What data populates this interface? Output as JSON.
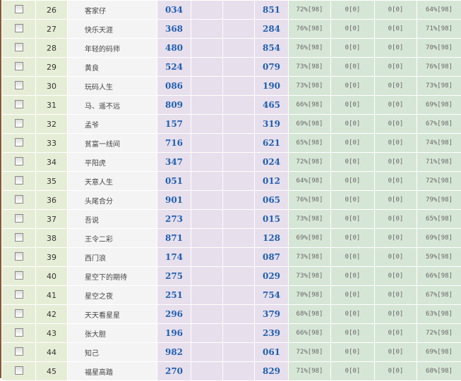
{
  "rows": [
    {
      "no": "26",
      "name": "客家仔",
      "a": "034",
      "b": "851",
      "p1": "72%[98]",
      "z1": "0[0]",
      "z2": "0[0]",
      "p2": "64%[98]"
    },
    {
      "no": "27",
      "name": "快乐天涯",
      "a": "368",
      "b": "284",
      "p1": "76%[98]",
      "z1": "0[0]",
      "z2": "0[0]",
      "p2": "71%[98]"
    },
    {
      "no": "28",
      "name": "年轻的码师",
      "a": "480",
      "b": "854",
      "p1": "76%[98]",
      "z1": "0[0]",
      "z2": "0[0]",
      "p2": "70%[98]"
    },
    {
      "no": "29",
      "name": "黄良",
      "a": "524",
      "b": "079",
      "p1": "73%[98]",
      "z1": "0[0]",
      "z2": "0[0]",
      "p2": "76%[98]"
    },
    {
      "no": "30",
      "name": "玩码人生",
      "a": "086",
      "b": "190",
      "p1": "73%[98]",
      "z1": "0[0]",
      "z2": "0[0]",
      "p2": "73%[98]"
    },
    {
      "no": "31",
      "name": "马、遥不远",
      "a": "809",
      "b": "465",
      "p1": "66%[98]",
      "z1": "0[0]",
      "z2": "0[0]",
      "p2": "69%[98]"
    },
    {
      "no": "32",
      "name": "孟爷",
      "a": "157",
      "b": "319",
      "p1": "69%[98]",
      "z1": "0[0]",
      "z2": "0[0]",
      "p2": "67%[98]"
    },
    {
      "no": "33",
      "name": "贫富一线间",
      "a": "716",
      "b": "621",
      "p1": "65%[98]",
      "z1": "0[0]",
      "z2": "0[0]",
      "p2": "74%[98]"
    },
    {
      "no": "34",
      "name": "平阳虎",
      "a": "347",
      "b": "024",
      "p1": "72%[98]",
      "z1": "0[0]",
      "z2": "0[0]",
      "p2": "71%[98]"
    },
    {
      "no": "35",
      "name": "天意人生",
      "a": "051",
      "b": "012",
      "p1": "64%[98]",
      "z1": "0[0]",
      "z2": "0[0]",
      "p2": "72%[98]"
    },
    {
      "no": "36",
      "name": "头尾合分",
      "a": "901",
      "b": "065",
      "p1": "76%[98]",
      "z1": "0[0]",
      "z2": "0[0]",
      "p2": "79%[98]"
    },
    {
      "no": "37",
      "name": "吾说",
      "a": "273",
      "b": "015",
      "p1": "73%[98]",
      "z1": "0[0]",
      "z2": "0[0]",
      "p2": "65%[98]"
    },
    {
      "no": "38",
      "name": "王令二彩",
      "a": "871",
      "b": "128",
      "p1": "69%[98]",
      "z1": "0[0]",
      "z2": "0[0]",
      "p2": "69%[98]"
    },
    {
      "no": "39",
      "name": "西门浪",
      "a": "174",
      "b": "087",
      "p1": "73%[98]",
      "z1": "0[0]",
      "z2": "0[0]",
      "p2": "59%[98]"
    },
    {
      "no": "40",
      "name": "星空下的期待",
      "a": "275",
      "b": "029",
      "p1": "73%[98]",
      "z1": "0[0]",
      "z2": "0[0]",
      "p2": "66%[98]"
    },
    {
      "no": "41",
      "name": "星空之夜",
      "a": "251",
      "b": "754",
      "p1": "70%[98]",
      "z1": "0[0]",
      "z2": "0[0]",
      "p2": "67%[98]"
    },
    {
      "no": "42",
      "name": "天天看星星",
      "a": "296",
      "b": "379",
      "p1": "68%[98]",
      "z1": "0[0]",
      "z2": "0[0]",
      "p2": "63%[98]"
    },
    {
      "no": "43",
      "name": "张大胆",
      "a": "196",
      "b": "239",
      "p1": "66%[98]",
      "z1": "0[0]",
      "z2": "0[0]",
      "p2": "72%[98]"
    },
    {
      "no": "44",
      "name": "知己",
      "a": "982",
      "b": "061",
      "p1": "72%[98]",
      "z1": "0[0]",
      "z2": "0[0]",
      "p2": "69%[98]"
    },
    {
      "no": "45",
      "name": "福星高踏",
      "a": "270",
      "b": "829",
      "p1": "71%[98]",
      "z1": "0[0]",
      "z2": "0[0]",
      "p2": "68%[98]"
    }
  ]
}
